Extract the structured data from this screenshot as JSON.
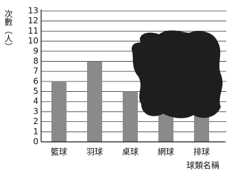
{
  "chart_data": {
    "type": "bar",
    "y_label": "次數（人）",
    "x_label": "球類名稱",
    "categories": [
      "籃球",
      "羽球",
      "桌球",
      "網球",
      "排球"
    ],
    "values": [
      6,
      8,
      5,
      null,
      null
    ],
    "color": "#8a8a8a",
    "ylim": [
      0,
      13
    ],
    "yticks": [
      0,
      1,
      2,
      3,
      4,
      5,
      6,
      7,
      8,
      9,
      10,
      11,
      12,
      13
    ],
    "grid": true
  }
}
